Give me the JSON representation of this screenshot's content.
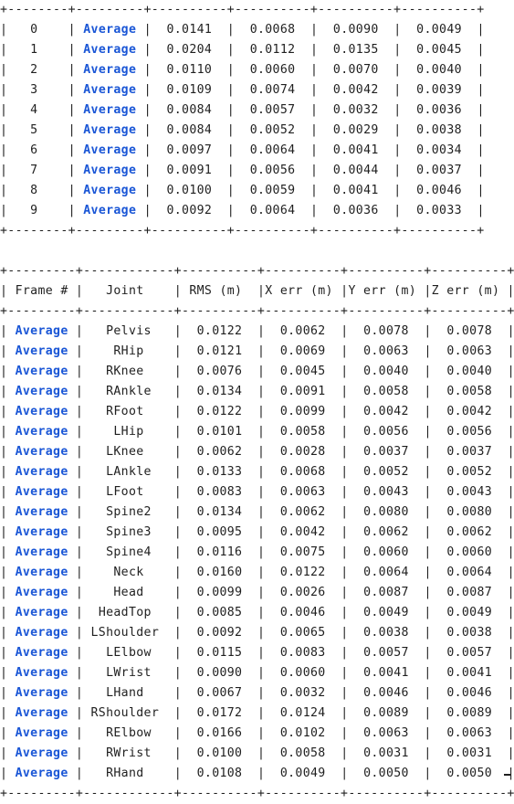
{
  "table_frames": {
    "separator": "+--------+---------+----------+----------+----------+----------+",
    "rows": [
      {
        "frame": "0",
        "joint": "Average",
        "rms": "0.0141",
        "x": "0.0068",
        "y": "0.0090",
        "z": "0.0049"
      },
      {
        "frame": "1",
        "joint": "Average",
        "rms": "0.0204",
        "x": "0.0112",
        "y": "0.0135",
        "z": "0.0045"
      },
      {
        "frame": "2",
        "joint": "Average",
        "rms": "0.0110",
        "x": "0.0060",
        "y": "0.0070",
        "z": "0.0040"
      },
      {
        "frame": "3",
        "joint": "Average",
        "rms": "0.0109",
        "x": "0.0074",
        "y": "0.0042",
        "z": "0.0039"
      },
      {
        "frame": "4",
        "joint": "Average",
        "rms": "0.0084",
        "x": "0.0057",
        "y": "0.0032",
        "z": "0.0036"
      },
      {
        "frame": "5",
        "joint": "Average",
        "rms": "0.0084",
        "x": "0.0052",
        "y": "0.0029",
        "z": "0.0038"
      },
      {
        "frame": "6",
        "joint": "Average",
        "rms": "0.0097",
        "x": "0.0064",
        "y": "0.0041",
        "z": "0.0034"
      },
      {
        "frame": "7",
        "joint": "Average",
        "rms": "0.0091",
        "x": "0.0056",
        "y": "0.0044",
        "z": "0.0037"
      },
      {
        "frame": "8",
        "joint": "Average",
        "rms": "0.0100",
        "x": "0.0059",
        "y": "0.0041",
        "z": "0.0046"
      },
      {
        "frame": "9",
        "joint": "Average",
        "rms": "0.0092",
        "x": "0.0064",
        "y": "0.0036",
        "z": "0.0033"
      }
    ]
  },
  "table_joints": {
    "separator": "+---------+------------+----------+----------+----------+----------+",
    "headers": [
      "Frame #",
      "Joint",
      "RMS (m)",
      "X err (m)",
      "Y err (m)",
      "Z err (m)"
    ],
    "rows": [
      {
        "frame": "Average",
        "joint": "Pelvis",
        "rms": "0.0122",
        "x": "0.0062",
        "y": "0.0078",
        "z": "0.0078"
      },
      {
        "frame": "Average",
        "joint": "RHip",
        "rms": "0.0121",
        "x": "0.0069",
        "y": "0.0063",
        "z": "0.0063"
      },
      {
        "frame": "Average",
        "joint": "RKnee",
        "rms": "0.0076",
        "x": "0.0045",
        "y": "0.0040",
        "z": "0.0040"
      },
      {
        "frame": "Average",
        "joint": "RAnkle",
        "rms": "0.0134",
        "x": "0.0091",
        "y": "0.0058",
        "z": "0.0058"
      },
      {
        "frame": "Average",
        "joint": "RFoot",
        "rms": "0.0122",
        "x": "0.0099",
        "y": "0.0042",
        "z": "0.0042"
      },
      {
        "frame": "Average",
        "joint": "LHip",
        "rms": "0.0101",
        "x": "0.0058",
        "y": "0.0056",
        "z": "0.0056"
      },
      {
        "frame": "Average",
        "joint": "LKnee",
        "rms": "0.0062",
        "x": "0.0028",
        "y": "0.0037",
        "z": "0.0037"
      },
      {
        "frame": "Average",
        "joint": "LAnkle",
        "rms": "0.0133",
        "x": "0.0068",
        "y": "0.0052",
        "z": "0.0052"
      },
      {
        "frame": "Average",
        "joint": "LFoot",
        "rms": "0.0083",
        "x": "0.0063",
        "y": "0.0043",
        "z": "0.0043"
      },
      {
        "frame": "Average",
        "joint": "Spine2",
        "rms": "0.0134",
        "x": "0.0062",
        "y": "0.0080",
        "z": "0.0080"
      },
      {
        "frame": "Average",
        "joint": "Spine3",
        "rms": "0.0095",
        "x": "0.0042",
        "y": "0.0062",
        "z": "0.0062"
      },
      {
        "frame": "Average",
        "joint": "Spine4",
        "rms": "0.0116",
        "x": "0.0075",
        "y": "0.0060",
        "z": "0.0060"
      },
      {
        "frame": "Average",
        "joint": "Neck",
        "rms": "0.0160",
        "x": "0.0122",
        "y": "0.0064",
        "z": "0.0064"
      },
      {
        "frame": "Average",
        "joint": "Head",
        "rms": "0.0099",
        "x": "0.0026",
        "y": "0.0087",
        "z": "0.0087"
      },
      {
        "frame": "Average",
        "joint": "HeadTop",
        "rms": "0.0085",
        "x": "0.0046",
        "y": "0.0049",
        "z": "0.0049"
      },
      {
        "frame": "Average",
        "joint": "LShoulder",
        "rms": "0.0092",
        "x": "0.0065",
        "y": "0.0038",
        "z": "0.0038"
      },
      {
        "frame": "Average",
        "joint": "LElbow",
        "rms": "0.0115",
        "x": "0.0083",
        "y": "0.0057",
        "z": "0.0057"
      },
      {
        "frame": "Average",
        "joint": "LWrist",
        "rms": "0.0090",
        "x": "0.0060",
        "y": "0.0041",
        "z": "0.0041"
      },
      {
        "frame": "Average",
        "joint": "LHand",
        "rms": "0.0067",
        "x": "0.0032",
        "y": "0.0046",
        "z": "0.0046"
      },
      {
        "frame": "Average",
        "joint": "RShoulder",
        "rms": "0.0172",
        "x": "0.0124",
        "y": "0.0089",
        "z": "0.0089"
      },
      {
        "frame": "Average",
        "joint": "RElbow",
        "rms": "0.0166",
        "x": "0.0102",
        "y": "0.0063",
        "z": "0.0063"
      },
      {
        "frame": "Average",
        "joint": "RWrist",
        "rms": "0.0100",
        "x": "0.0058",
        "y": "0.0031",
        "z": "0.0031"
      },
      {
        "frame": "Average",
        "joint": "RHand",
        "rms": "0.0108",
        "x": "0.0049",
        "y": "0.0050",
        "z": "0.0050"
      }
    ]
  }
}
